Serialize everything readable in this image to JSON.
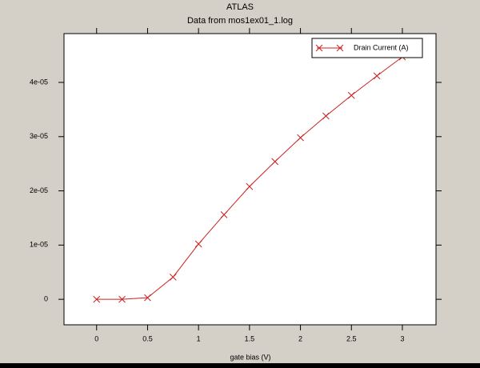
{
  "chart_data": {
    "type": "line",
    "title": "ATLAS",
    "subtitle": "Data from mos1ex01_1.log",
    "x_label": "gate bias (V)",
    "x": [
      0,
      0.25,
      0.5,
      0.75,
      1,
      1.25,
      1.5,
      1.75,
      2,
      2.25,
      2.5,
      2.75,
      3
    ],
    "series": [
      {
        "name": "Drain Current (A)",
        "color": "#cc2222",
        "values": [
          0,
          0,
          3e-07,
          4.1e-06,
          1.02e-05,
          1.56e-05,
          2.08e-05,
          2.54e-05,
          2.98e-05,
          3.38e-05,
          3.76e-05,
          4.12e-05,
          4.47e-05
        ]
      }
    ],
    "xlim": [
      -0.32,
      3.33
    ],
    "xticks": [
      0,
      0.5,
      1,
      1.5,
      2,
      2.5,
      3
    ],
    "ylim": [
      -4.7e-06,
      4.9e-05
    ],
    "yticks": [
      0,
      {
        "value": 1e-05,
        "label": "1e-05"
      },
      {
        "value": 2e-05,
        "label": "2e-05"
      },
      {
        "value": 3e-05,
        "label": "3e-05"
      },
      {
        "value": 4e-05,
        "label": "4e-05"
      }
    ],
    "legend": "upper right",
    "marker": "x"
  }
}
